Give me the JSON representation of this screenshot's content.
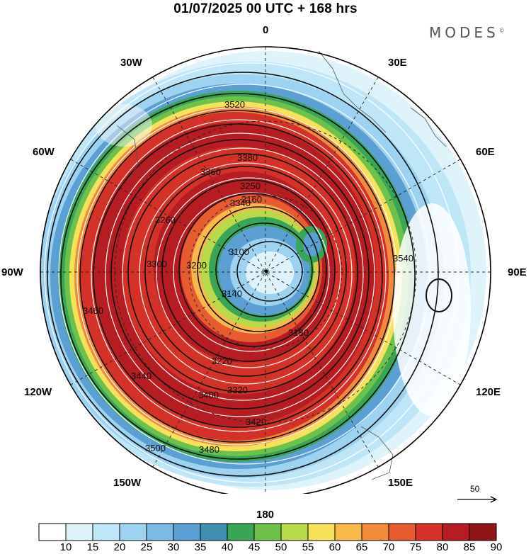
{
  "title": "01/07/2025  00 UTC  + 168 hrs",
  "brand": "MODES",
  "brand_mark": "©",
  "longitude_labels": {
    "lon_0": "0",
    "lon_30E": "30E",
    "lon_60E": "60E",
    "lon_90E": "90E",
    "lon_120E": "120E",
    "lon_150E": "150E",
    "lon_180": "180",
    "lon_150W": "150W",
    "lon_120W": "120W",
    "lon_90W": "90W",
    "lon_60W": "60W",
    "lon_30W": "30W"
  },
  "reference_vector": {
    "label": "50"
  },
  "contour_labels": [
    "3100",
    "3140",
    "3160",
    "3180",
    "3200",
    "3220",
    "3250",
    "3260",
    "3300",
    "3320",
    "3340",
    "3360",
    "3380",
    "3400",
    "3420",
    "3440",
    "3460",
    "3480",
    "3500",
    "3520",
    "3540"
  ],
  "colorbar": {
    "ticks": [
      "10",
      "15",
      "20",
      "25",
      "30",
      "35",
      "40",
      "45",
      "50",
      "55",
      "60",
      "65",
      "70",
      "75",
      "80",
      "85",
      "90"
    ],
    "colors": [
      "#ffffff",
      "#dff3fb",
      "#bfe6f7",
      "#9dd2f0",
      "#7cb9e4",
      "#5c9fd3",
      "#3e8fb0",
      "#3aa457",
      "#6ec24b",
      "#b7d94a",
      "#f5e15a",
      "#f8b94a",
      "#f28a3b",
      "#e75b30",
      "#d43128",
      "#b51d22",
      "#8f1519"
    ]
  }
}
